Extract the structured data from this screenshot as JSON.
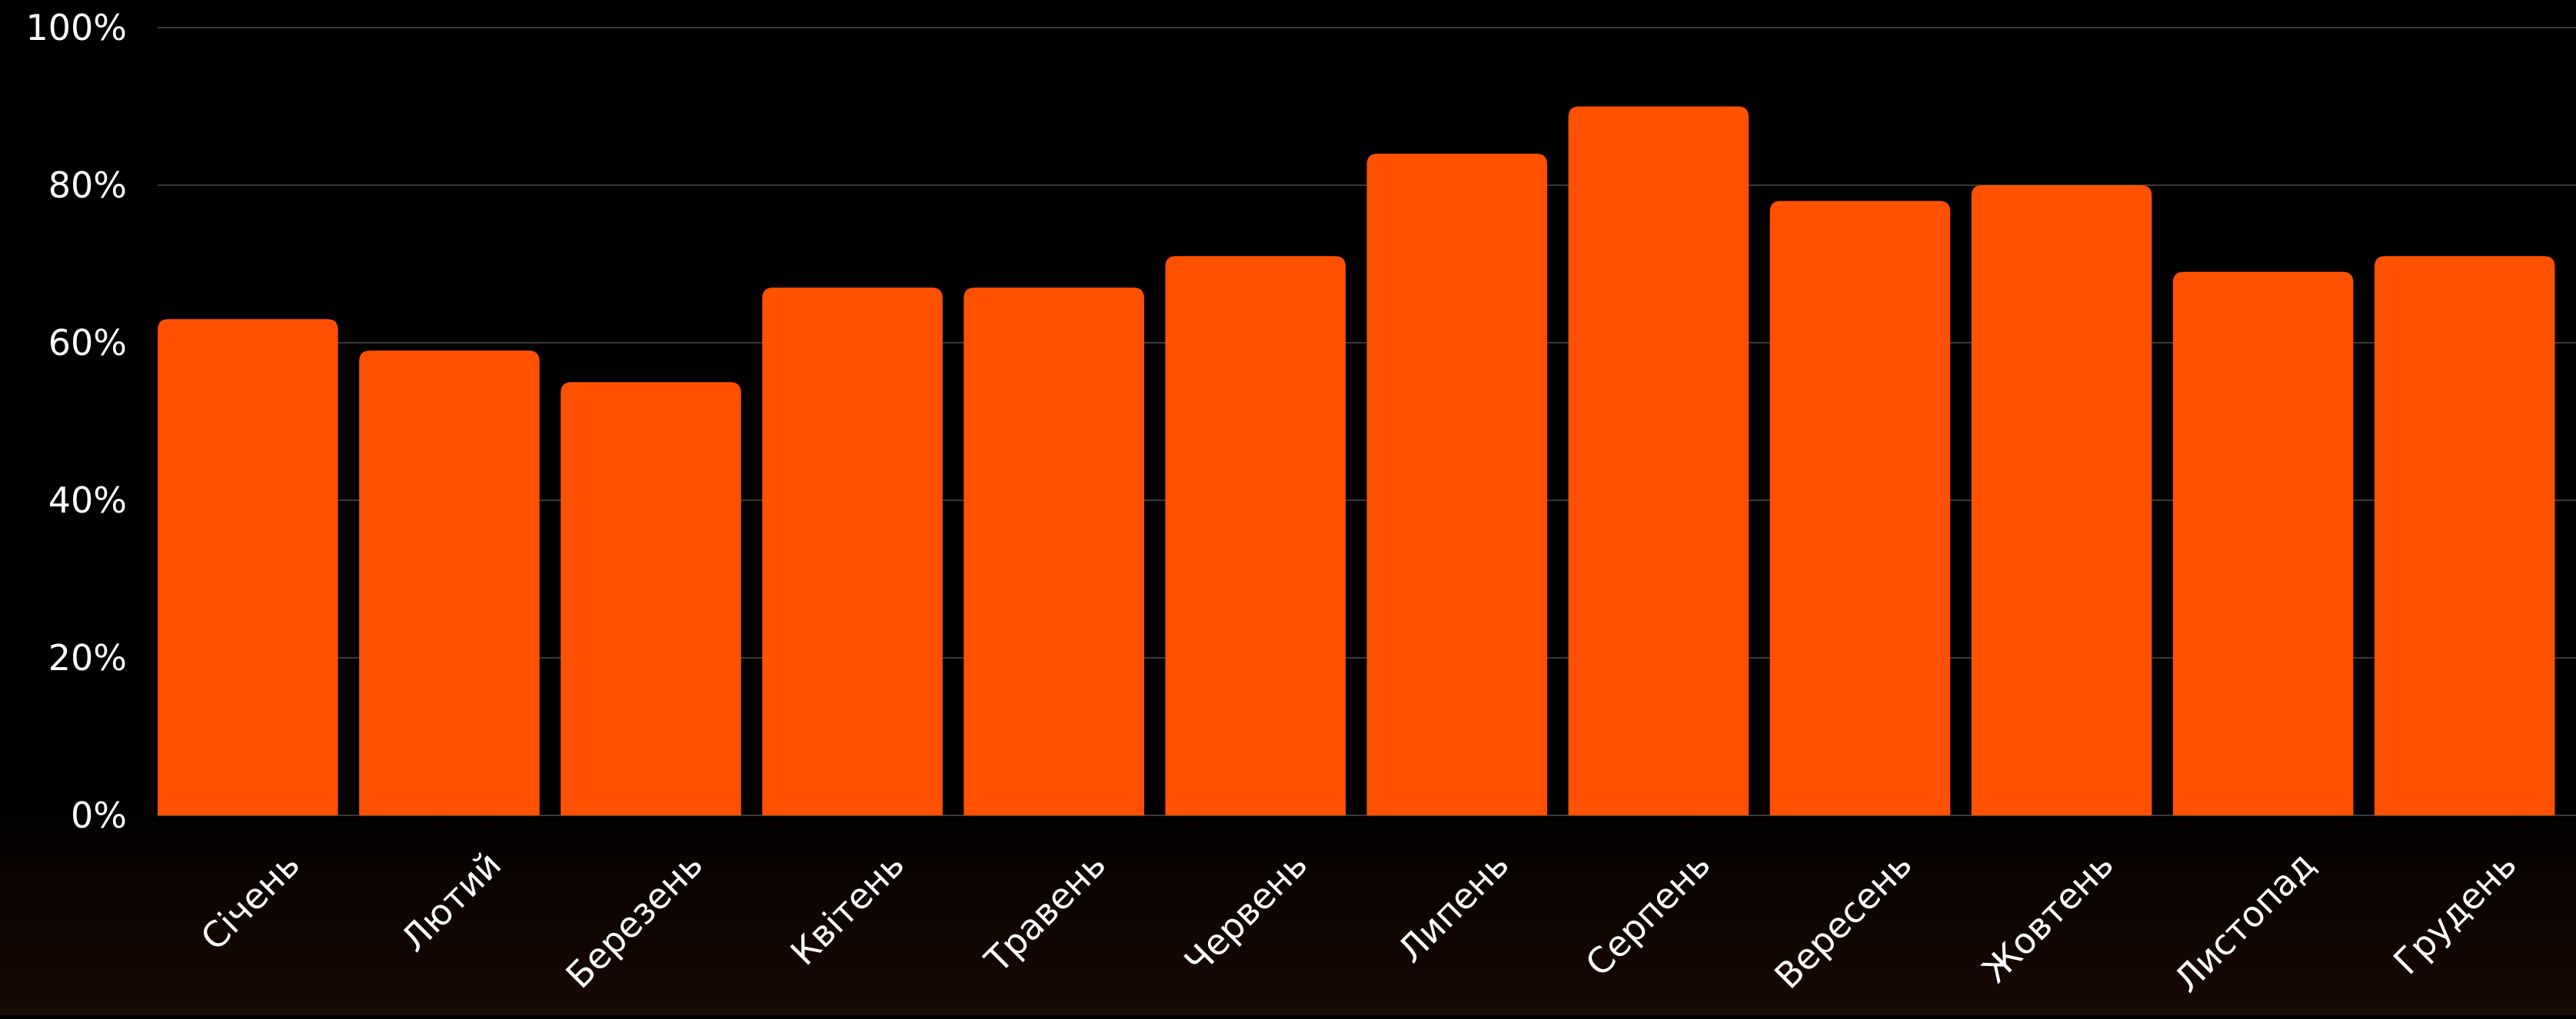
{
  "chart_data": {
    "type": "bar",
    "categories": [
      "Січень",
      "Лютий",
      "Березень",
      "Квітень",
      "Травень",
      "Червень",
      "Липень",
      "Серпень",
      "Вересень",
      "Жовтень",
      "Листопад",
      "Грудень"
    ],
    "values": [
      63,
      59,
      55,
      67,
      67,
      71,
      84,
      90,
      78,
      80,
      69,
      71
    ],
    "ylim": [
      0,
      100
    ],
    "yticks": [
      "0%",
      "20%",
      "40%",
      "60%",
      "80%",
      "100%"
    ],
    "grid": true,
    "colors": {
      "bar": "#FF5100",
      "background": "#000000",
      "text": "#FFFFFF",
      "grid": "#3A3A3A"
    }
  }
}
